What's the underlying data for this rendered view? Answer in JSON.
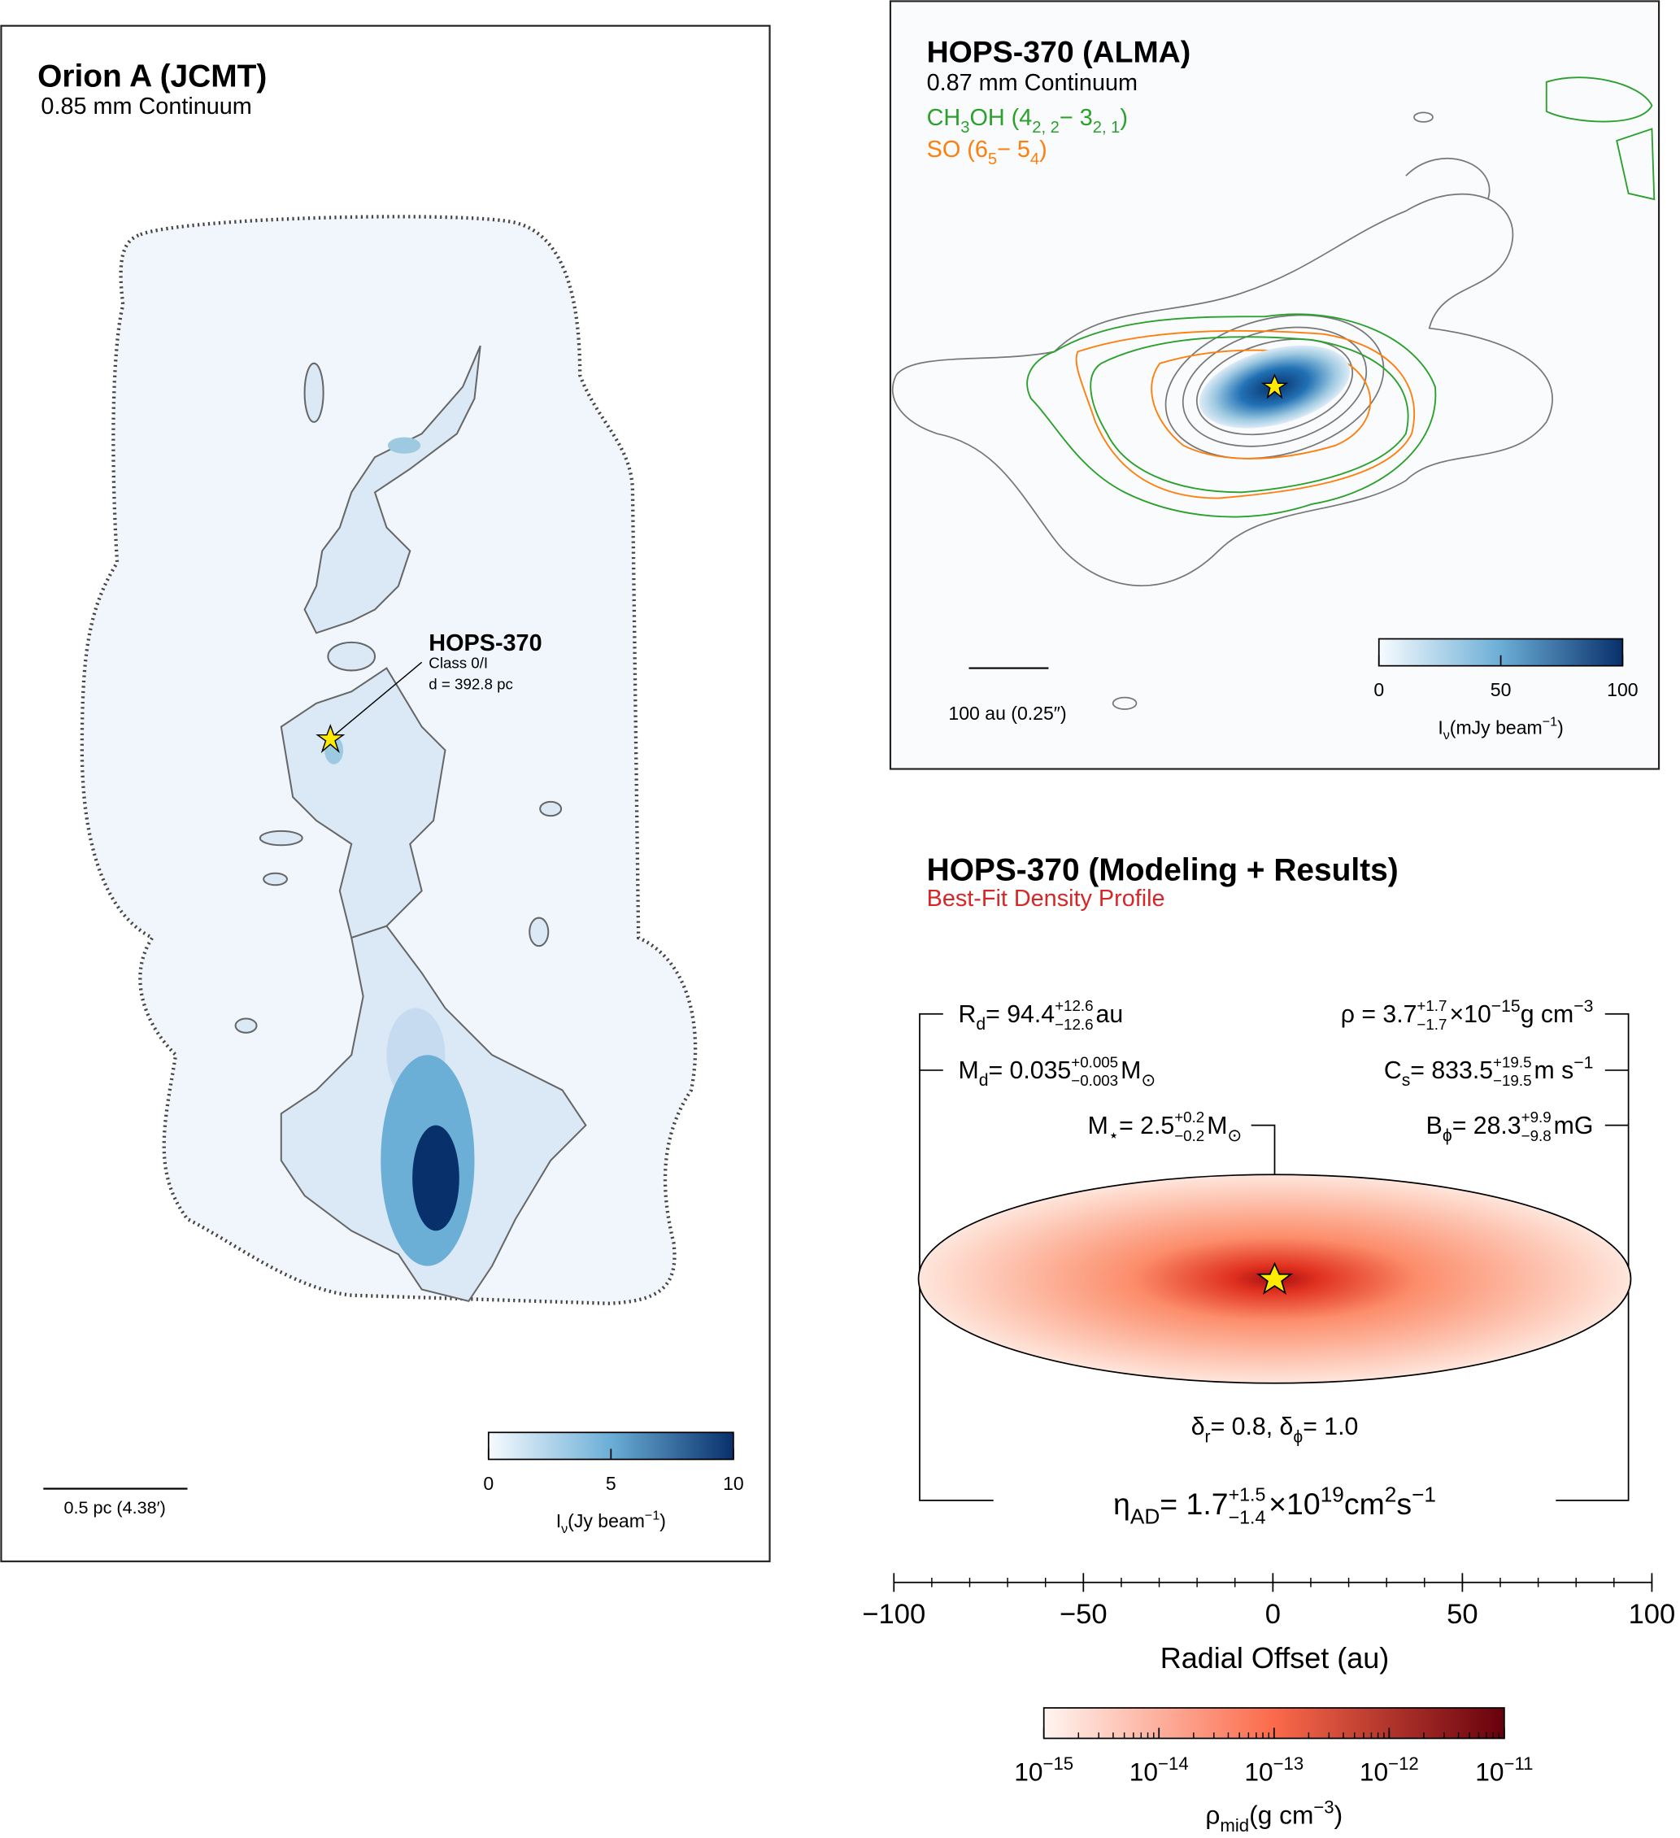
{
  "orion": {
    "title": "Orion A (JCMT)",
    "subtitle": "0.85 mm Continuum",
    "source": {
      "name": "HOPS-370",
      "class": "Class 0/I",
      "distance": "d = 392.8 pc"
    },
    "scale_bar": "0.5 pc (4.38′)",
    "colorbar": {
      "label": [
        {
          "t": "I"
        },
        {
          "t": "ν",
          "s": "sub"
        },
        {
          "t": " (Jy beam"
        },
        {
          "t": "−1",
          "s": "sup"
        },
        {
          "t": ")"
        }
      ],
      "lim": [
        0,
        10
      ],
      "ticks": [
        0,
        5,
        10
      ],
      "colors": [
        "#f7fbff",
        "#6baed6",
        "#08306b"
      ]
    }
  },
  "alma": {
    "title": "HOPS-370 (ALMA)",
    "subtitle": "0.87 mm Continuum",
    "lines": [
      {
        "color": "#2ca02c",
        "label": [
          {
            "t": "CH"
          },
          {
            "t": "3",
            "s": "sub"
          },
          {
            "t": "OH (4"
          },
          {
            "t": "2, 2",
            "s": "sub"
          },
          {
            "t": " − 3"
          },
          {
            "t": "2, 1",
            "s": "sub"
          },
          {
            "t": ")"
          }
        ]
      },
      {
        "color": "#ff7f0e",
        "label": [
          {
            "t": "SO (6"
          },
          {
            "t": "5",
            "s": "sub"
          },
          {
            "t": " − 5"
          },
          {
            "t": "4",
            "s": "sub"
          },
          {
            "t": ")"
          }
        ]
      }
    ],
    "scale_bar": "100 au (0.25″)",
    "colorbar": {
      "label": [
        {
          "t": "I"
        },
        {
          "t": "ν",
          "s": "sub"
        },
        {
          "t": " (mJy beam"
        },
        {
          "t": "−1",
          "s": "sup"
        },
        {
          "t": ")"
        }
      ],
      "lim": [
        0,
        100
      ],
      "ticks": [
        0,
        50,
        100
      ],
      "colors": [
        "#f7fbff",
        "#6baed6",
        "#08306b"
      ]
    }
  },
  "model": {
    "title": "HOPS-370 (Modeling + Results)",
    "subtitle": "Best-Fit Density Profile",
    "left_params": [
      [
        {
          "t": "R"
        },
        {
          "t": "d",
          "s": "sub"
        },
        {
          "t": " = 94.4"
        },
        {
          "t": "+12.6",
          "s": "up"
        },
        {
          "t": "−12.6",
          "s": "down"
        },
        {
          "t": " au"
        }
      ],
      [
        {
          "t": "M"
        },
        {
          "t": "d",
          "s": "sub"
        },
        {
          "t": " = 0.035"
        },
        {
          "t": "+0.005",
          "s": "up"
        },
        {
          "t": "−0.003",
          "s": "down"
        },
        {
          "t": " M"
        },
        {
          "t": "⊙",
          "s": "sub"
        }
      ]
    ],
    "star_param": [
      {
        "t": "M"
      },
      {
        "t": "⋆",
        "s": "sub"
      },
      {
        "t": " = 2.5"
      },
      {
        "t": "+0.2",
        "s": "up"
      },
      {
        "t": "−0.2",
        "s": "down"
      },
      {
        "t": " M"
      },
      {
        "t": "⊙",
        "s": "sub"
      }
    ],
    "right_params": [
      [
        {
          "t": "ρ = 3.7"
        },
        {
          "t": "+1.7",
          "s": "up"
        },
        {
          "t": "−1.7",
          "s": "down"
        },
        {
          "t": "×10"
        },
        {
          "t": "−15",
          "s": "sup"
        },
        {
          "t": " g cm"
        },
        {
          "t": "−3",
          "s": "sup"
        }
      ],
      [
        {
          "t": "C"
        },
        {
          "t": "s",
          "s": "sub"
        },
        {
          "t": " = 833.5"
        },
        {
          "t": "+19.5",
          "s": "up"
        },
        {
          "t": "−19.5",
          "s": "down"
        },
        {
          "t": " m s"
        },
        {
          "t": "−1",
          "s": "sup"
        }
      ],
      [
        {
          "t": "B"
        },
        {
          "t": "ϕ",
          "s": "sub"
        },
        {
          "t": " = 28.3"
        },
        {
          "t": "+9.9",
          "s": "up"
        },
        {
          "t": "−9.8",
          "s": "down"
        },
        {
          "t": " mG"
        }
      ]
    ],
    "deltas": [
      {
        "t": "δ"
      },
      {
        "t": "r",
        "s": "sub"
      },
      {
        "t": " = 0.8, δ"
      },
      {
        "t": "ϕ",
        "s": "sub"
      },
      {
        "t": " = 1.0"
      }
    ],
    "eta": [
      {
        "t": "η"
      },
      {
        "t": "AD",
        "s": "sub"
      },
      {
        "t": " = 1.7"
      },
      {
        "t": "+1.5",
        "s": "up"
      },
      {
        "t": "−1.4",
        "s": "down"
      },
      {
        "t": "×10"
      },
      {
        "t": "19",
        "s": "sup"
      },
      {
        "t": " cm"
      },
      {
        "t": "2",
        "s": "sup"
      },
      {
        "t": " s"
      },
      {
        "t": "−1",
        "s": "sup"
      }
    ],
    "x_axis": {
      "label": "Radial Offset (au)",
      "lim": [
        -100,
        100
      ],
      "minor_step": 10,
      "ticks": [
        {
          "value": -100,
          "label": "−100"
        },
        {
          "value": -50,
          "label": "−50"
        },
        0,
        50,
        100
      ]
    },
    "colorbar": {
      "label": [
        {
          "t": "ρ"
        },
        {
          "t": "mid",
          "s": "sub"
        },
        {
          "t": " (g cm"
        },
        {
          "t": "−3",
          "s": "sup"
        },
        {
          "t": ")"
        }
      ],
      "log": true,
      "lim": [
        1e-15,
        1e-11
      ],
      "colors": [
        "#fff5f0",
        "#fb6a4a",
        "#67000d"
      ],
      "ticks": [
        {
          "value": 1e-15,
          "label": "10",
          "exponent": "−15"
        },
        {
          "value": 1e-14,
          "label": "10",
          "exponent": "−14"
        },
        {
          "value": 1e-13,
          "label": "10",
          "exponent": "−13"
        },
        {
          "value": 1e-12,
          "label": "10",
          "exponent": "−12"
        },
        {
          "value": 1e-11,
          "label": "10",
          "exponent": "−11"
        }
      ]
    }
  }
}
